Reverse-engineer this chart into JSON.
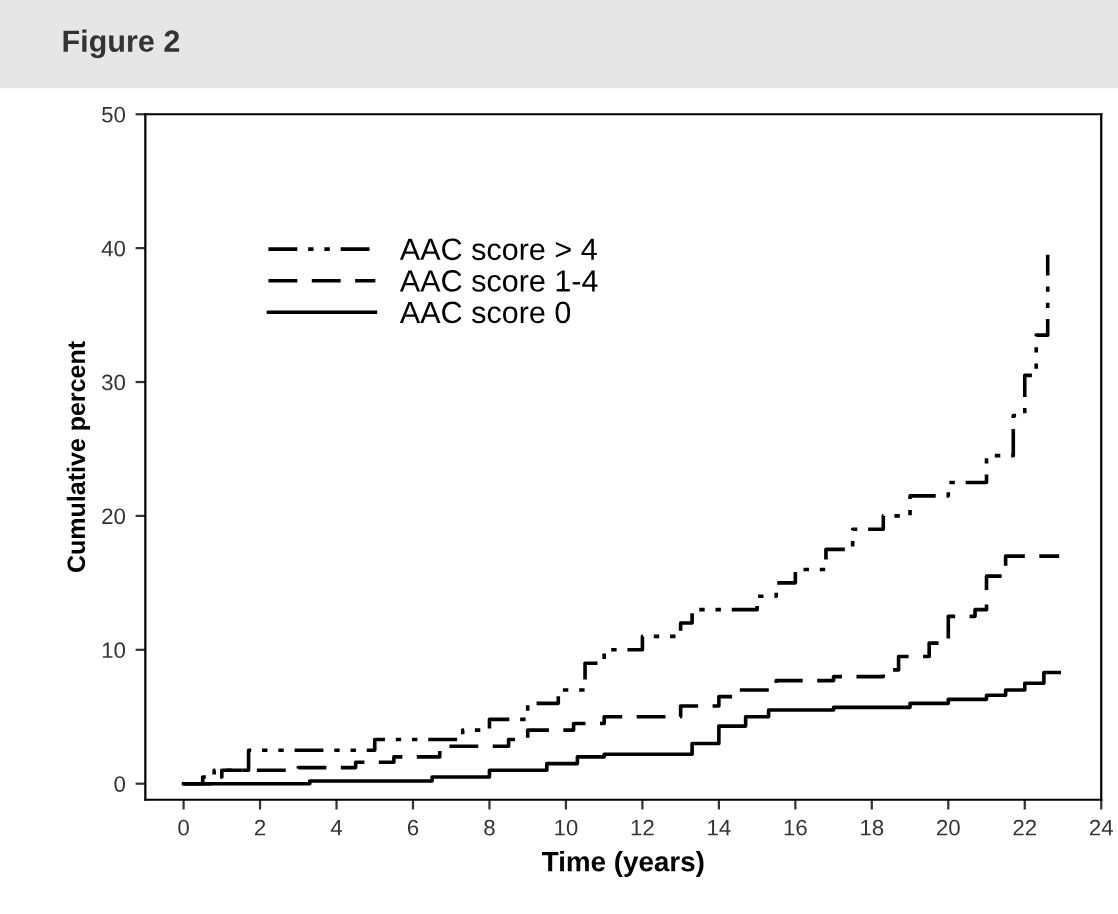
{
  "chart_data": {
    "type": "step",
    "title": "Figure 2",
    "xlabel": "Time (years)",
    "ylabel": "Cumulative percent",
    "xlim": [
      -1,
      24
    ],
    "ylim": [
      -1.2,
      50
    ],
    "xticks": [
      0,
      2,
      4,
      6,
      8,
      10,
      12,
      14,
      16,
      18,
      20,
      22,
      24
    ],
    "yticks": [
      0,
      10,
      20,
      30,
      40,
      50
    ],
    "grid": false,
    "legend": "top left",
    "series": [
      {
        "name": "AAC score > 4",
        "color": "#000000",
        "line_style": "dashdot",
        "x": [
          0,
          0.8,
          1.7,
          5,
          7.3,
          8,
          9,
          9.8,
          10.5,
          11,
          12,
          13,
          13.3,
          15,
          15.5,
          16,
          16.8,
          17.5,
          18.3,
          19,
          20,
          21,
          21.7,
          22,
          22.3,
          22.6
        ],
        "values": [
          0,
          1,
          2.5,
          3.3,
          4,
          4.8,
          6,
          7,
          9,
          10,
          11,
          12,
          13,
          14,
          15,
          16,
          17.5,
          19,
          20,
          21.5,
          22.5,
          24.5,
          27.5,
          30.5,
          33.5,
          39.5
        ]
      },
      {
        "name": "AAC score 1-4",
        "color": "#000000",
        "line_style": "dashed",
        "x": [
          0,
          0.5,
          1,
          3,
          4.5,
          5.5,
          6.7,
          8.5,
          9,
          10.2,
          11,
          13,
          14,
          14.5,
          15.5,
          17,
          18.3,
          18.7,
          19.5,
          20,
          20.7,
          21,
          21.5,
          22.9
        ],
        "values": [
          0,
          0.5,
          1,
          1.2,
          1.6,
          2,
          2.8,
          3.3,
          4,
          4.5,
          5,
          5.8,
          6.5,
          7,
          7.7,
          8,
          8.5,
          9.5,
          10.5,
          12.5,
          13,
          15.5,
          17,
          17
        ]
      },
      {
        "name": "AAC score 0",
        "color": "#000000",
        "line_style": "solid",
        "x": [
          0,
          3.3,
          6.5,
          8,
          9.5,
          10.3,
          11,
          13.3,
          14,
          14.7,
          15.3,
          17,
          19,
          20,
          21,
          21.5,
          22,
          22.5,
          22.9
        ],
        "values": [
          0,
          0.2,
          0.5,
          1,
          1.5,
          2,
          2.2,
          3,
          4.3,
          5,
          5.5,
          5.7,
          6,
          6.3,
          6.6,
          7,
          7.5,
          8.3,
          8.3
        ]
      }
    ]
  }
}
